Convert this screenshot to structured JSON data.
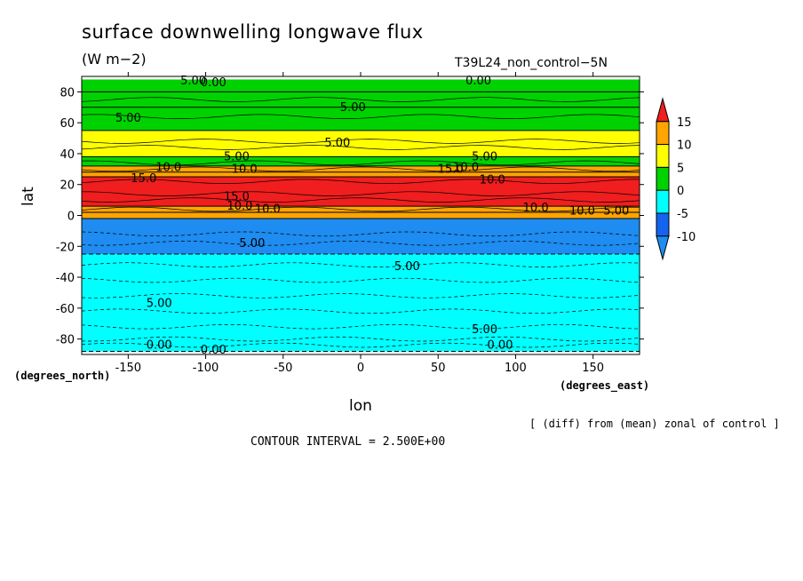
{
  "chart_data": {
    "type": "heatmap",
    "title": "surface downwelling longwave flux",
    "units": "(W m−2)",
    "run_label": "T39L24_non_control−5N",
    "xlabel": "lon",
    "ylabel": "lat",
    "x_unit_label": "(degrees_east)",
    "y_unit_label": "(degrees_north)",
    "xlim": [
      -180,
      180
    ],
    "ylim": [
      -90,
      90
    ],
    "xticks": [
      -150,
      -100,
      -50,
      0,
      50,
      100,
      150
    ],
    "yticks": [
      -80,
      -60,
      -40,
      -20,
      0,
      20,
      40,
      60,
      80
    ],
    "colorbar": {
      "levels": [
        -10,
        -5,
        0,
        5,
        10,
        15
      ],
      "colors": [
        "#1e8cf0",
        "#1464f0",
        "#00ffff",
        "#00d200",
        "#ffff00",
        "#ffa500",
        "#f01e1e"
      ]
    },
    "zonal_bands": [
      {
        "lat_min": 80,
        "lat_max": 88,
        "value": 2.5
      },
      {
        "lat_min": 70,
        "lat_max": 80,
        "value": 2.5
      },
      {
        "lat_min": 55,
        "lat_max": 70,
        "value": 0.5
      },
      {
        "lat_min": 38,
        "lat_max": 55,
        "value": 6.5
      },
      {
        "lat_min": 32,
        "lat_max": 38,
        "value": 2.5
      },
      {
        "lat_min": 28,
        "lat_max": 32,
        "value": 11
      },
      {
        "lat_min": 25,
        "lat_max": 28,
        "value": 13
      },
      {
        "lat_min": 6,
        "lat_max": 25,
        "value": 17
      },
      {
        "lat_min": 2,
        "lat_max": 6,
        "value": 11
      },
      {
        "lat_min": -2,
        "lat_max": 2,
        "value": 13
      },
      {
        "lat_min": -25,
        "lat_max": -2,
        "value": -11
      },
      {
        "lat_min": -88,
        "lat_max": -25,
        "value": -4
      }
    ],
    "contour_labels": [
      "5.00",
      "0.00",
      "5.00",
      "0.00",
      "5.00",
      "5.00",
      "5.00",
      "5.00",
      "15.0",
      "10.0",
      "10.0",
      "15.0",
      "10.0",
      "10.0",
      "15.0",
      "10.0",
      "10.0",
      "10.0",
      "10.0",
      "5.00",
      "5.00",
      "5.00",
      "5.00",
      "0.00",
      "0.00",
      "5.00",
      "0.00"
    ],
    "footnote": "[ (diff) from (mean) zonal of control ]",
    "contour_interval": "CONTOUR INTERVAL = 2.500E+00"
  }
}
